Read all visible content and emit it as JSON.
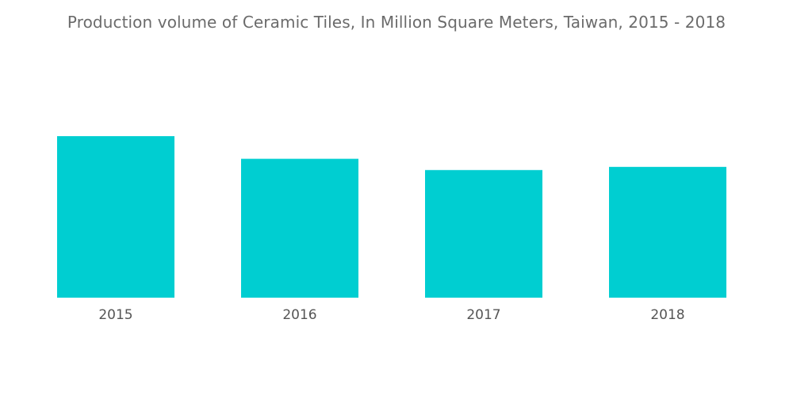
{
  "chart_data": {
    "type": "bar",
    "title": "Production volume of Ceramic Tiles, In Million Square Meters, Taiwan, 2015 - 2018",
    "categories": [
      "2015",
      "2016",
      "2017",
      "2018"
    ],
    "values": [
      100,
      86,
      79,
      81
    ],
    "xlabel": "",
    "ylabel": "",
    "ylim": [
      0,
      100
    ],
    "grid": false,
    "legend": "none",
    "bar_color": "#00ced1"
  }
}
